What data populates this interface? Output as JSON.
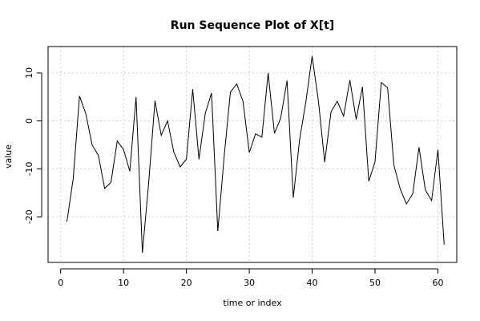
{
  "chart_data": {
    "type": "line",
    "title": "Run Sequence Plot of X[t]",
    "xlabel": "time or index",
    "ylabel": "value",
    "xlim": [
      -2,
      63
    ],
    "ylim": [
      -29.5,
      15.5
    ],
    "xticks": [
      0,
      10,
      20,
      30,
      40,
      50,
      60
    ],
    "yticks": [
      -20,
      -10,
      0,
      10
    ],
    "grid": true,
    "x": [
      1,
      2,
      3,
      4,
      5,
      6,
      7,
      8,
      9,
      10,
      11,
      12,
      13,
      14,
      15,
      16,
      17,
      18,
      19,
      20,
      21,
      22,
      23,
      24,
      25,
      26,
      27,
      28,
      29,
      30,
      31,
      32,
      33,
      34,
      35,
      36,
      37,
      38,
      39,
      40,
      41,
      42,
      43,
      44,
      45,
      46,
      47,
      48,
      49,
      50,
      51,
      52,
      53,
      54,
      55,
      56,
      57,
      58,
      59,
      60,
      61
    ],
    "y": [
      -21,
      -12,
      5.2,
      1.5,
      -5,
      -7.2,
      -14.1,
      -12.8,
      -4.2,
      -6,
      -10.5,
      5,
      -27.5,
      -13,
      4.2,
      -3,
      0,
      -6.5,
      -9.6,
      -8,
      6.6,
      -8,
      1.6,
      5.8,
      -23,
      -7.5,
      6,
      7.7,
      4.1,
      -6.6,
      -2.7,
      -3.4,
      10,
      -2.6,
      0.6,
      8.4,
      -16,
      -4,
      4,
      13.5,
      4.1,
      -8.6,
      1.9,
      4.1,
      1,
      8.5,
      0.3,
      7.1,
      -12.6,
      -8.5,
      8,
      6.9,
      -9.2,
      -14.2,
      -17.3,
      -15.2,
      -5.5,
      -14.4,
      -16.6,
      -6,
      -25.8
    ]
  }
}
